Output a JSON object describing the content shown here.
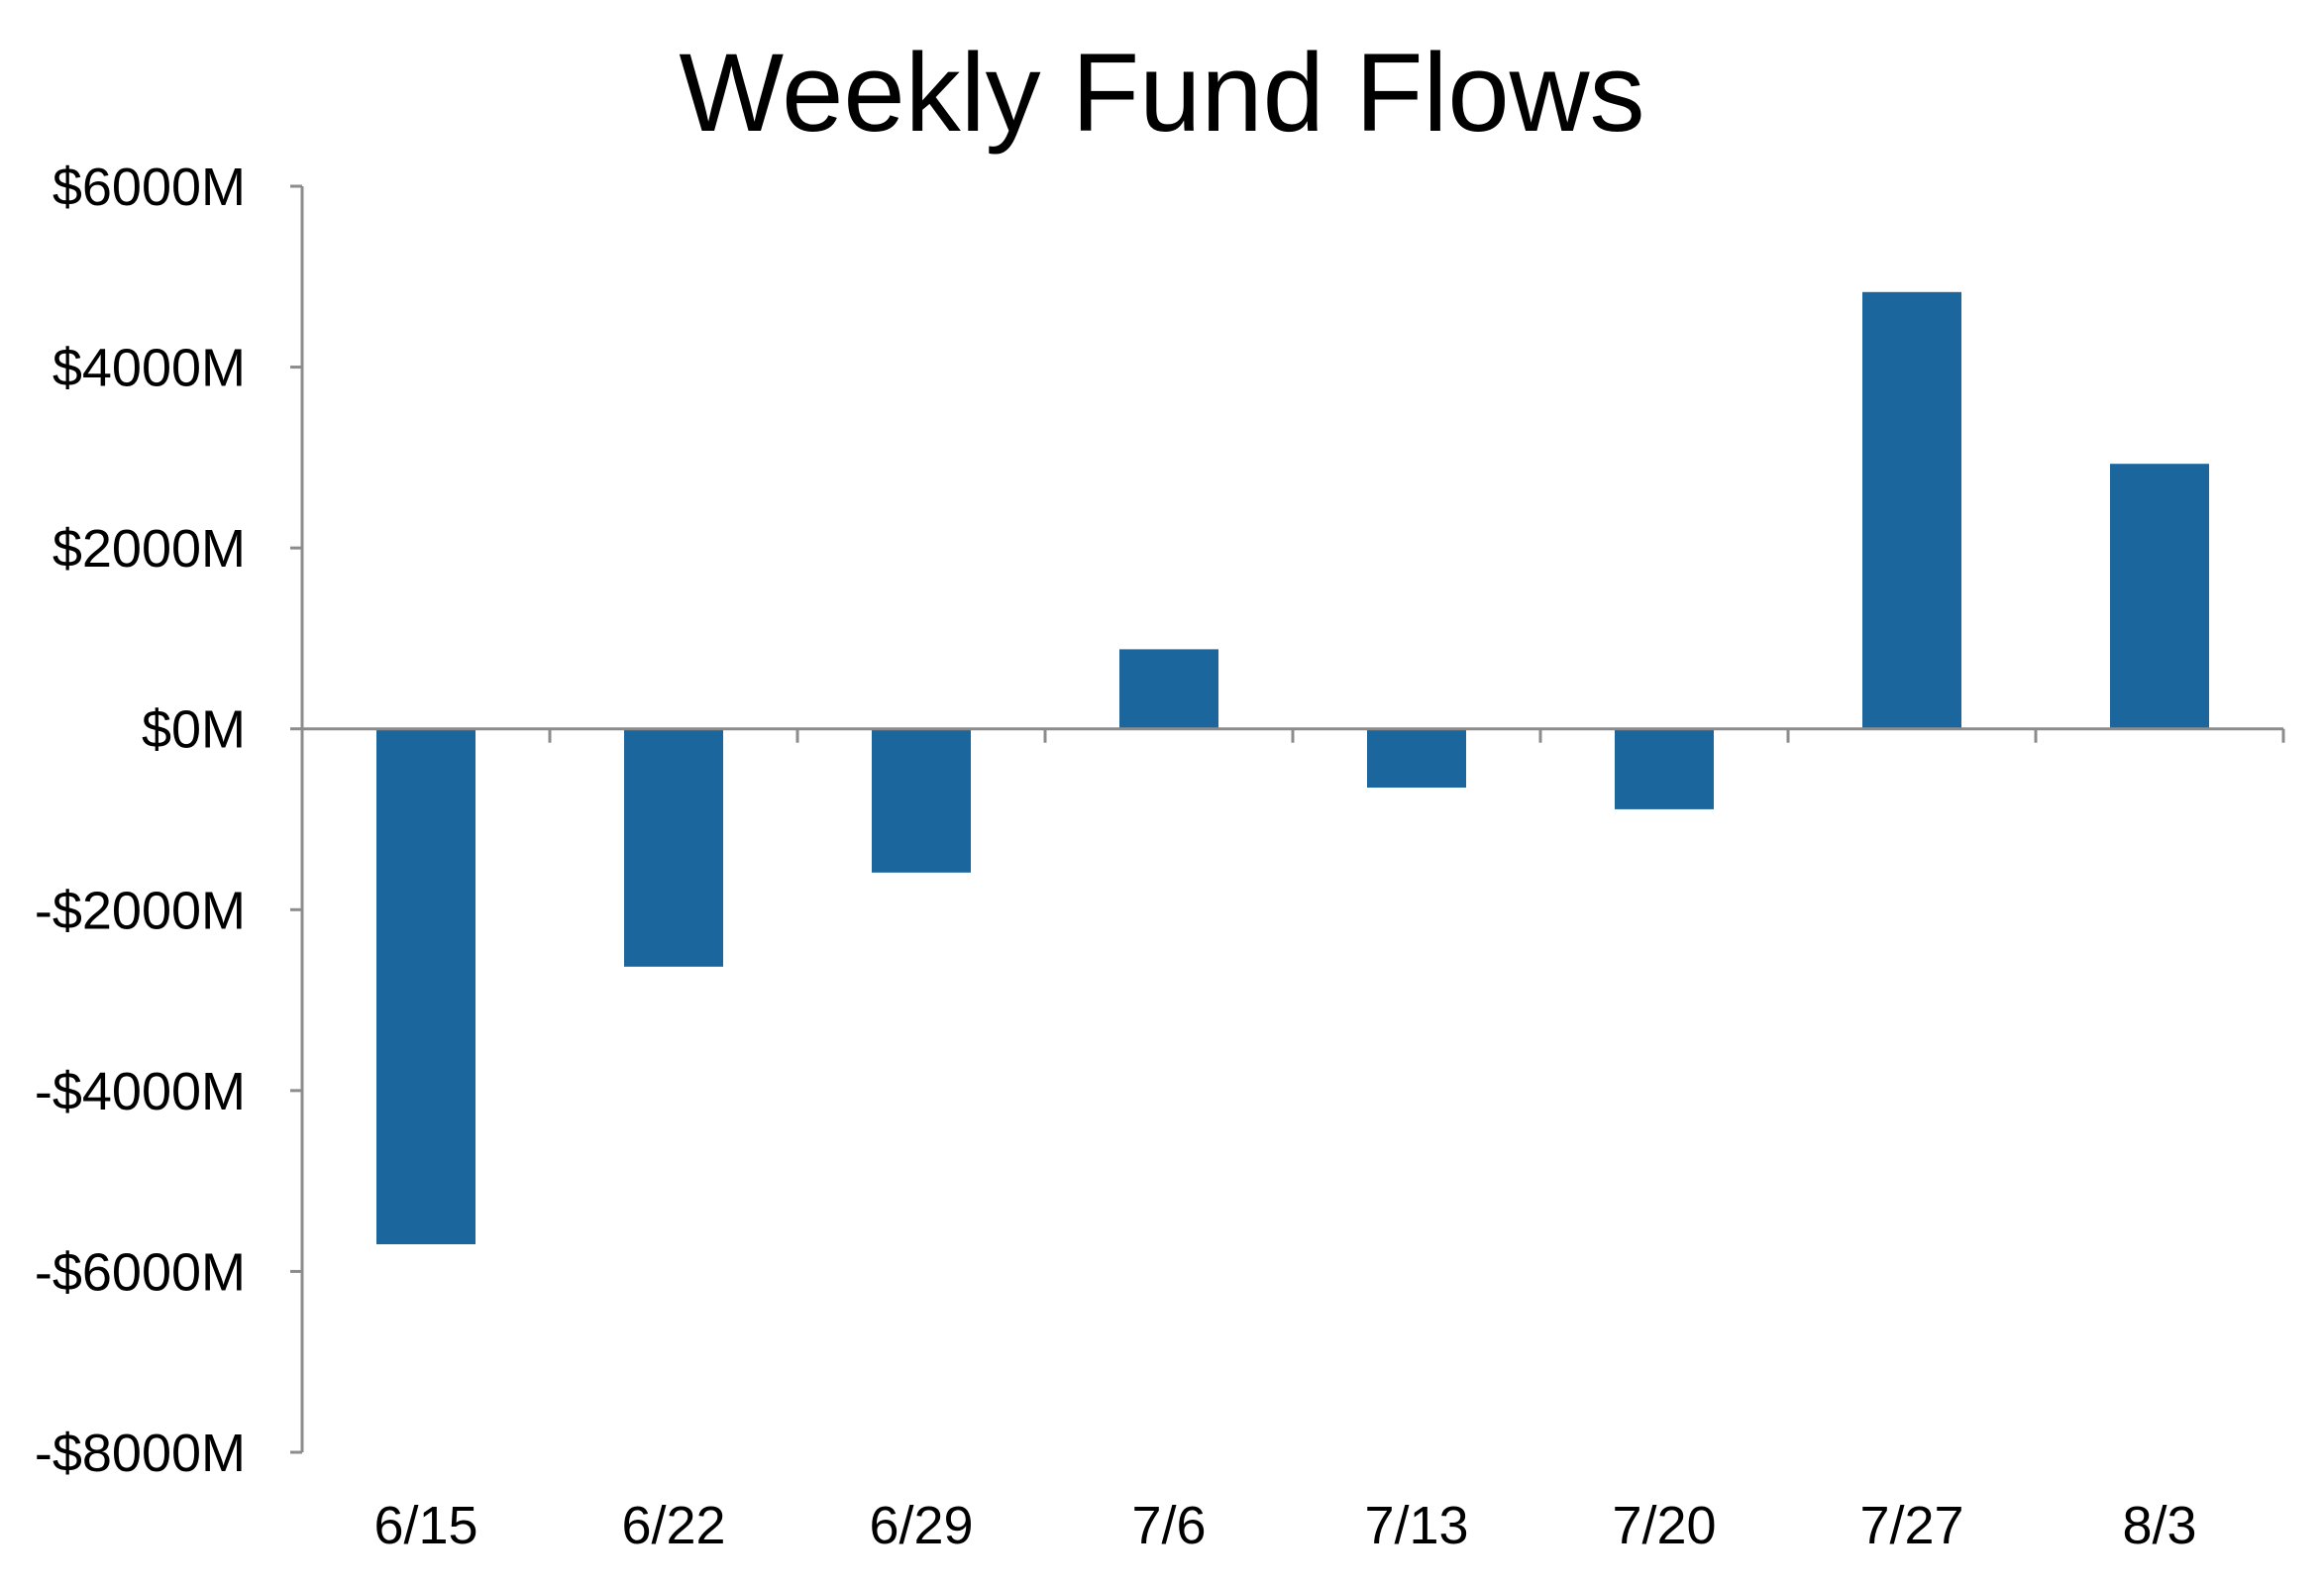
{
  "chart_data": {
    "type": "bar",
    "title": "Weekly Fund Flows",
    "xlabel": "",
    "ylabel": "",
    "categories": [
      "6/15",
      "6/22",
      "6/29",
      "7/6",
      "7/13",
      "7/20",
      "7/27",
      "8/3"
    ],
    "values": [
      -5700,
      -2630,
      -1590,
      880,
      -650,
      -890,
      4830,
      2930
    ],
    "unit": "$M",
    "ylim": [
      -8000,
      6000
    ],
    "yticks": [
      6000,
      4000,
      2000,
      0,
      -2000,
      -4000,
      -6000,
      -8000
    ],
    "ytick_labels": [
      "$6000M",
      "$4000M",
      "$2000M",
      "$0M",
      "-$2000M",
      "-$4000M",
      "-$6000M",
      "-$8000M"
    ],
    "grid": false,
    "legend": "none",
    "colors": {
      "bar": "#1a669d",
      "axis": "#8c8c8c",
      "text": "#000000"
    }
  }
}
